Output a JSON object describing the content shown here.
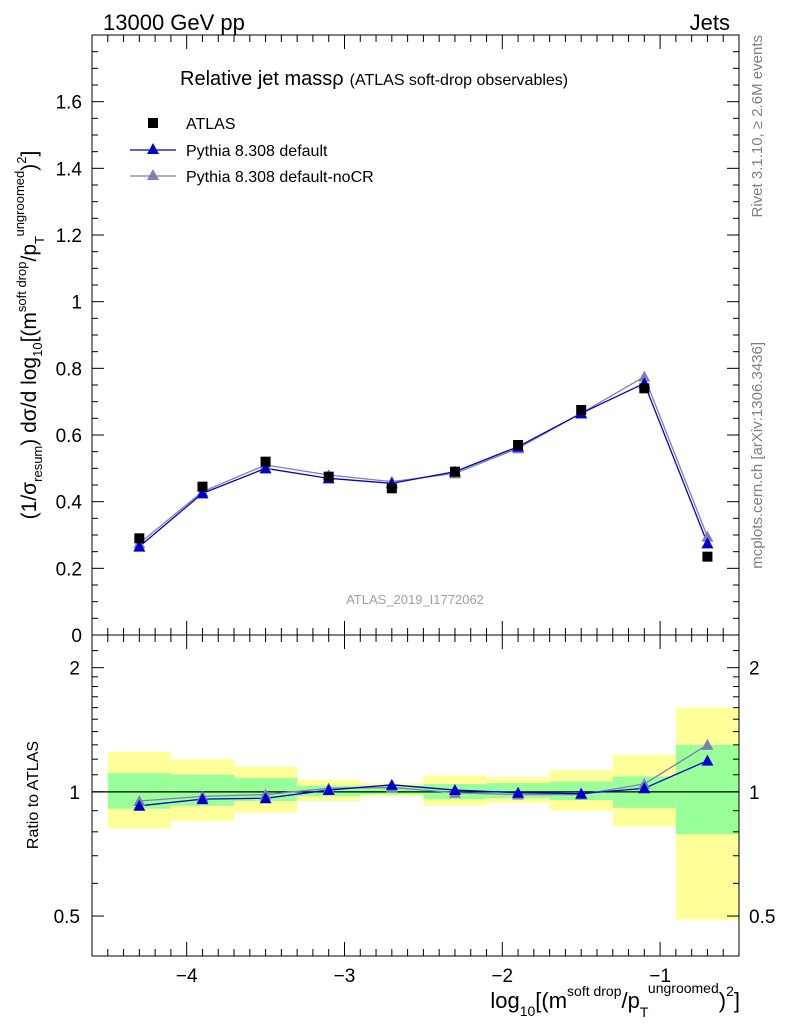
{
  "header": {
    "left": "13000 GeV pp",
    "right": "Jets"
  },
  "main_plot": {
    "title": "Relative jet massρ",
    "title_sub": "(ATLAS soft-drop observables)",
    "ylabel_parts": {
      "a": "(1/σ",
      "a_sub": "resum",
      "b": ") dσ/d log",
      "b_sub": "10",
      "c": "[(m",
      "c_sup": "soft drop",
      "d": "/p",
      "d_sub": "T",
      "d_sup": "ungroomed",
      "e": ")",
      "e_sup": "2",
      "f": "]"
    },
    "watermark": "ATLAS_2019_I1772062"
  },
  "ratio_plot": {
    "ylabel": "Ratio to ATLAS"
  },
  "xlabel_parts": {
    "a": "log",
    "a_sub": "10",
    "b": "[(m",
    "b_sup": "soft drop",
    "c": "/p",
    "c_sub": "T",
    "c_sup": "ungroomed",
    "d": ")",
    "d_sup": "2",
    "e": "]"
  },
  "side_text": {
    "rivet": "Rivet 3.1.10, ≥ 2.6M events",
    "mcplots": "mcplots.cern.ch [arXiv:1306.3436]"
  },
  "legend": {
    "placement": "top-left",
    "entries": [
      {
        "label": "ATLAS",
        "marker": "square",
        "color": "#000000"
      },
      {
        "label": "Pythia 8.308 default",
        "marker": "triangle",
        "color": "#0000cc"
      },
      {
        "label": "Pythia 8.308 default-noCR",
        "marker": "triangle",
        "color": "#7f7fb2"
      }
    ]
  },
  "colors": {
    "band_inner": "#99ff99",
    "band_outer": "#ffff99",
    "data": "#000000",
    "pythia_default": "#0000cc",
    "pythia_nocr": "#7f7fb2",
    "side_text": "#808080",
    "watermark": "#a0a0a0"
  },
  "chart_data": [
    {
      "type": "scatter",
      "panel": "main",
      "xlim": [
        -4.6,
        -0.5
      ],
      "ylim": [
        0,
        1.8
      ],
      "yticks": [
        "0",
        "0.2",
        "0.4",
        "0.6",
        "0.8",
        "1",
        "1.2",
        "1.4",
        "1.6"
      ],
      "ytick_values": [
        0,
        0.2,
        0.4,
        0.6,
        0.8,
        1.0,
        1.2,
        1.4,
        1.6
      ],
      "x": [
        -4.3,
        -3.9,
        -3.5,
        -3.1,
        -2.7,
        -2.3,
        -1.9,
        -1.5,
        -1.1,
        -0.7
      ],
      "bin_edges": [
        -4.5,
        -4.1,
        -3.7,
        -3.3,
        -2.9,
        -2.5,
        -2.1,
        -1.7,
        -1.3,
        -0.9,
        -0.5
      ],
      "series": [
        {
          "name": "ATLAS",
          "values": [
            0.29,
            0.445,
            0.52,
            0.475,
            0.44,
            0.49,
            0.57,
            0.675,
            0.74,
            0.235
          ]
        },
        {
          "name": "Pythia 8.308 default",
          "values": [
            0.265,
            0.425,
            0.5,
            0.47,
            0.455,
            0.49,
            0.565,
            0.665,
            0.755,
            0.275
          ]
        },
        {
          "name": "Pythia 8.308 default-noCR",
          "values": [
            0.275,
            0.43,
            0.51,
            0.48,
            0.46,
            0.485,
            0.56,
            0.665,
            0.775,
            0.295
          ]
        }
      ]
    },
    {
      "type": "line",
      "panel": "ratio",
      "xlim": [
        -4.6,
        -0.5
      ],
      "ylim": [
        0.4,
        2.4
      ],
      "log_y": true,
      "xticks": [
        "−4",
        "−3",
        "−2",
        "−1"
      ],
      "xtick_values": [
        -4,
        -3,
        -2,
        -1
      ],
      "yticks_left": [
        "0.5",
        "1",
        "2"
      ],
      "yticks_right": [
        "0.5",
        "1",
        "2"
      ],
      "ytick_values": [
        0.5,
        1,
        2
      ],
      "x": [
        -4.3,
        -3.9,
        -3.5,
        -3.1,
        -2.7,
        -2.3,
        -1.9,
        -1.5,
        -1.1,
        -0.7
      ],
      "bin_edges": [
        -4.5,
        -4.1,
        -3.7,
        -3.3,
        -2.9,
        -2.5,
        -2.1,
        -1.7,
        -1.3,
        -0.9,
        -0.5
      ],
      "band_inner": {
        "lo": [
          0.91,
          0.925,
          0.95,
          0.975,
          0.985,
          0.96,
          0.965,
          0.955,
          0.915,
          0.79
        ],
        "hi": [
          1.11,
          1.1,
          1.08,
          1.035,
          1.035,
          1.045,
          1.05,
          1.06,
          1.09,
          1.3
        ]
      },
      "band_outer": {
        "lo": [
          0.815,
          0.85,
          0.89,
          0.95,
          0.975,
          0.925,
          0.94,
          0.9,
          0.825,
          0.49
        ],
        "hi": [
          1.25,
          1.2,
          1.15,
          1.07,
          1.05,
          1.095,
          1.085,
          1.13,
          1.23,
          1.6
        ]
      },
      "series": [
        {
          "name": "Pythia 8.308 default",
          "values": [
            0.925,
            0.96,
            0.965,
            1.01,
            1.04,
            1.01,
            0.995,
            0.99,
            1.02,
            1.19
          ]
        },
        {
          "name": "Pythia 8.308 default-noCR",
          "values": [
            0.95,
            0.975,
            0.985,
            1.02,
            1.025,
            0.995,
            0.985,
            0.985,
            1.045,
            1.3
          ]
        }
      ]
    }
  ]
}
